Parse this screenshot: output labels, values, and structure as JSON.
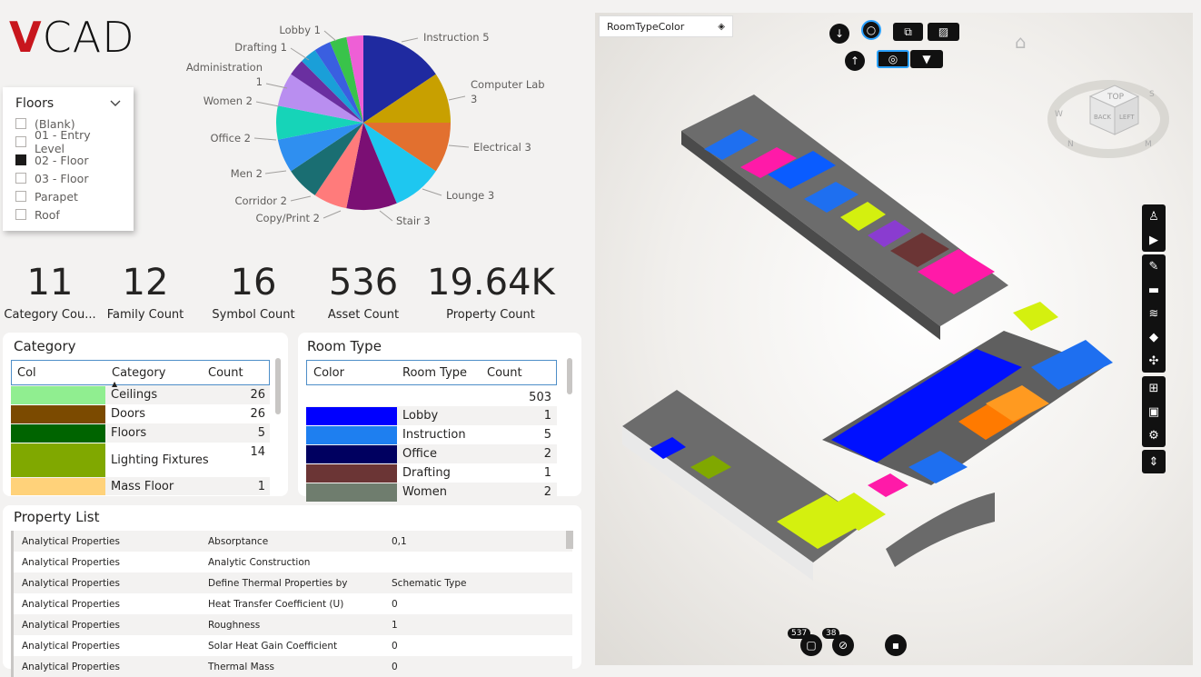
{
  "logo": {
    "text_v": "V",
    "text_rest": "CAD"
  },
  "floors": {
    "title": "Floors",
    "items": [
      {
        "label": "(Blank)",
        "checked": false
      },
      {
        "label": "01 - Entry Level",
        "checked": false
      },
      {
        "label": "02 - Floor",
        "checked": true
      },
      {
        "label": "03 - Floor",
        "checked": false
      },
      {
        "label": "Parapet",
        "checked": false
      },
      {
        "label": "Roof",
        "checked": false
      }
    ]
  },
  "chart_data": {
    "type": "pie",
    "slices": [
      {
        "label": "Instruction",
        "value": 5,
        "color": "#1f2aa0"
      },
      {
        "label": "Computer Lab",
        "value": 3,
        "color": "#c8a000"
      },
      {
        "label": "Electrical",
        "value": 3,
        "color": "#e2702f"
      },
      {
        "label": "Lounge",
        "value": 3,
        "color": "#1ec7f0"
      },
      {
        "label": "Stair",
        "value": 3,
        "color": "#7b0f74"
      },
      {
        "label": "Copy/Print",
        "value": 2,
        "color": "#ff7b7b"
      },
      {
        "label": "Corridor",
        "value": 2,
        "color": "#1a6e72"
      },
      {
        "label": "Men",
        "value": 2,
        "color": "#2f8ff0"
      },
      {
        "label": "Office",
        "value": 2,
        "color": "#16d4b8"
      },
      {
        "label": "Women",
        "value": 2,
        "color": "#b98ef0"
      },
      {
        "label": "Administration",
        "value": 1,
        "color": "#6a2fa0"
      },
      {
        "label": "Drafting",
        "value": 1,
        "color": "#1a9fd8"
      },
      {
        "label": "Lobby",
        "value": 1,
        "color": "#3a5fe0"
      },
      {
        "label": "",
        "value": 1,
        "color": "#39c34a"
      },
      {
        "label": "",
        "value": 1,
        "color": "#ee5fd6"
      }
    ],
    "labels": [
      {
        "text": "Instruction 5"
      },
      {
        "text": "Computer Lab"
      },
      {
        "text": "3"
      },
      {
        "text": "Electrical 3"
      },
      {
        "text": "Lounge 3"
      },
      {
        "text": "Stair 3"
      },
      {
        "text": "Copy/Print 2"
      },
      {
        "text": "Corridor 2"
      },
      {
        "text": "Men 2"
      },
      {
        "text": "Office 2"
      },
      {
        "text": "Women 2"
      },
      {
        "text": "Administration"
      },
      {
        "text": "1"
      },
      {
        "text": "Drafting 1"
      },
      {
        "text": "Lobby 1"
      }
    ]
  },
  "kpis": [
    {
      "value": "11",
      "label": "Category Cou..."
    },
    {
      "value": "12",
      "label": "Family Count"
    },
    {
      "value": "16",
      "label": "Symbol Count"
    },
    {
      "value": "536",
      "label": "Asset Count"
    },
    {
      "value": "19.64K",
      "label": "Property Count"
    }
  ],
  "category_table": {
    "title": "Category",
    "headers": {
      "col": "Col",
      "category": "Category",
      "count": "Count"
    },
    "rows": [
      {
        "color": "#90ee90",
        "category": "Ceilings",
        "count": "26"
      },
      {
        "color": "#7b4a00",
        "category": "Doors",
        "count": "26"
      },
      {
        "color": "#006400",
        "category": "Floors",
        "count": "5"
      },
      {
        "color": "#80a800",
        "category": "Lighting Fixtures",
        "count": "14"
      },
      {
        "color": "#ffd27a",
        "category": "Mass Floor",
        "count": "1"
      }
    ]
  },
  "room_table": {
    "title": "Room Type",
    "headers": {
      "color": "Color",
      "room_type": "Room Type",
      "count": "Count"
    },
    "total": "503",
    "rows": [
      {
        "color": "#0000ff",
        "room_type": "Lobby",
        "count": "1"
      },
      {
        "color": "#1e7ff0",
        "room_type": "Instruction",
        "count": "5"
      },
      {
        "color": "#000060",
        "room_type": "Office",
        "count": "2"
      },
      {
        "color": "#6b3535",
        "room_type": "Drafting",
        "count": "1"
      },
      {
        "color": "#6f7d6e",
        "room_type": "Women",
        "count": "2"
      }
    ]
  },
  "property_list": {
    "title": "Property List",
    "rows": [
      {
        "group": "Analytical Properties",
        "name": "Absorptance",
        "value": "0,1"
      },
      {
        "group": "Analytical Properties",
        "name": "Analytic Construction",
        "value": ""
      },
      {
        "group": "Analytical Properties",
        "name": "Define Thermal Properties by",
        "value": "Schematic Type"
      },
      {
        "group": "Analytical Properties",
        "name": "Heat Transfer Coefficient (U)",
        "value": "0"
      },
      {
        "group": "Analytical Properties",
        "name": "Roughness",
        "value": "1"
      },
      {
        "group": "Analytical Properties",
        "name": "Solar Heat Gain Coefficient",
        "value": "0"
      },
      {
        "group": "Analytical Properties",
        "name": "Thermal Mass",
        "value": "0"
      }
    ]
  },
  "viewer": {
    "dropdown_label": "RoomTypeColor",
    "badge_left": "537",
    "badge_right": "38",
    "cube_labels": {
      "top": "TOP",
      "front": "BACK",
      "right": "LEFT",
      "n": "N",
      "w": "W",
      "s": "S",
      "e": "M"
    }
  }
}
